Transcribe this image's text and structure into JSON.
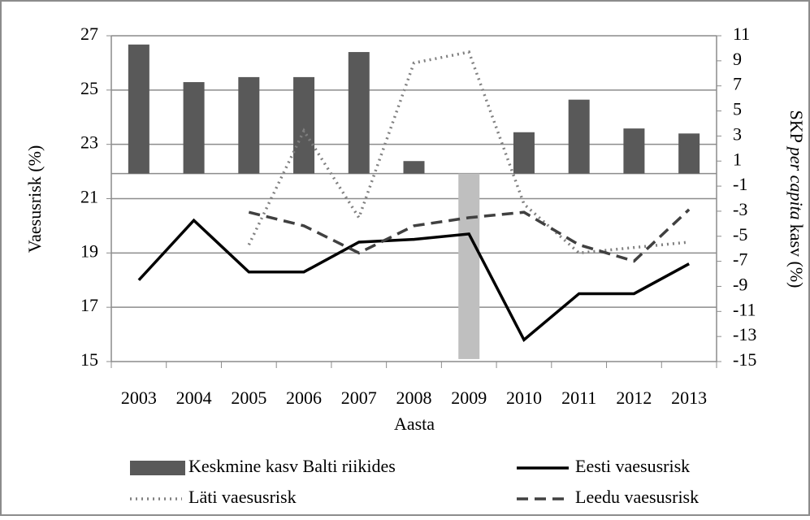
{
  "chart_data": {
    "type": "bar-line",
    "xlabel": "Aasta",
    "ylabel": "Vaesusrisk (%)",
    "y2label": [
      "SKP",
      "per capita",
      "kasv (%)"
    ],
    "categories": [
      "2003",
      "2004",
      "2005",
      "2006",
      "2007",
      "2008",
      "2009",
      "2010",
      "2011",
      "2012",
      "2013"
    ],
    "ylim": [
      15,
      27
    ],
    "yticks": [
      15,
      17,
      19,
      21,
      23,
      25,
      27
    ],
    "y2lim": [
      -15,
      11
    ],
    "y2ticks": [
      -15,
      -13,
      -11,
      -9,
      -7,
      -5,
      -3,
      -1,
      1,
      3,
      5,
      7,
      9,
      11
    ],
    "grid": true,
    "series": [
      {
        "name": "Keskmine kasv Balti riikides",
        "type": "bar",
        "axis": "y2",
        "color": "#595959",
        "negative_color": "#bfbfbf",
        "values": [
          10.3,
          7.3,
          7.7,
          7.7,
          9.7,
          1.0,
          -14.8,
          3.3,
          5.9,
          3.6,
          3.2
        ]
      },
      {
        "name": "Eesti vaesusrisk",
        "type": "line",
        "style": "solid",
        "color": "#000000",
        "values": [
          18.0,
          20.2,
          18.3,
          18.3,
          19.4,
          19.5,
          19.7,
          15.8,
          17.5,
          17.5,
          18.6
        ]
      },
      {
        "name": "Läti vaesusrisk",
        "type": "line",
        "style": "dotted",
        "color": "#808080",
        "values": [
          null,
          null,
          19.3,
          23.5,
          20.3,
          26.0,
          26.4,
          20.8,
          19.0,
          19.2,
          19.4
        ]
      },
      {
        "name": "Leedu vaesusrisk",
        "type": "line",
        "style": "dashed",
        "color": "#404040",
        "values": [
          null,
          null,
          20.5,
          20.0,
          19.0,
          20.0,
          20.3,
          20.5,
          19.3,
          18.7,
          20.6
        ]
      }
    ]
  }
}
